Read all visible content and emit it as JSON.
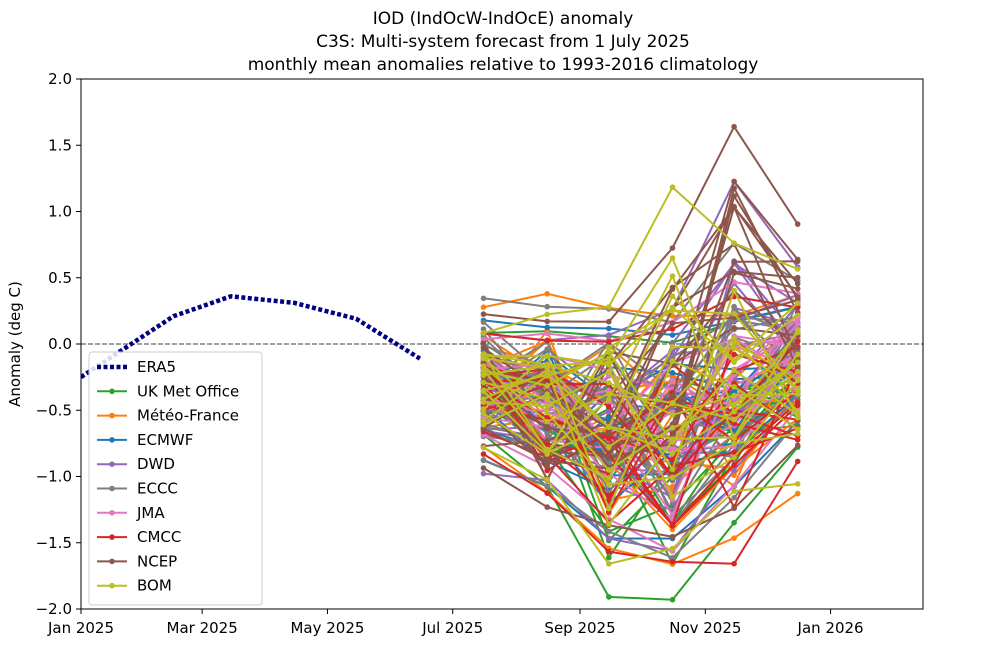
{
  "chart_data": {
    "type": "line",
    "title_lines": [
      "IOD (IndOcW-IndOcE) anomaly",
      "C3S: Multi-system forecast from 1 July 2025",
      "monthly mean anomalies relative to 1993-2016 climatology"
    ],
    "ylabel": "Anomaly (deg C)",
    "xlabel": "",
    "xlim": [
      "2025-01-01",
      "2026-02-15"
    ],
    "ylim": [
      -2.0,
      2.0
    ],
    "x_ticks": [
      {
        "date": "2025-01-01",
        "label": "Jan 2025"
      },
      {
        "date": "2025-03-01",
        "label": "Mar 2025"
      },
      {
        "date": "2025-05-01",
        "label": "May 2025"
      },
      {
        "date": "2025-07-01",
        "label": "Jul 2025"
      },
      {
        "date": "2025-09-01",
        "label": "Sep 2025"
      },
      {
        "date": "2025-11-01",
        "label": "Nov 2025"
      },
      {
        "date": "2026-01-01",
        "label": "Jan 2026"
      }
    ],
    "y_ticks": [
      {
        "value": 2.0,
        "label": "2.0"
      },
      {
        "value": 1.5,
        "label": "1.5"
      },
      {
        "value": 1.0,
        "label": "1.0"
      },
      {
        "value": 0.5,
        "label": "0.5"
      },
      {
        "value": 0.0,
        "label": "0.0"
      },
      {
        "value": -0.5,
        "label": "−0.5"
      },
      {
        "value": -1.0,
        "label": "−1.0"
      },
      {
        "value": -1.5,
        "label": "−1.5"
      },
      {
        "value": -2.0,
        "label": "−2.0"
      }
    ],
    "zero_line": true,
    "legend_position": "lower-left",
    "forecast_dates": [
      "2025-07-16",
      "2025-08-16",
      "2025-09-15",
      "2025-10-16",
      "2025-11-15",
      "2025-12-16"
    ],
    "observed": {
      "name": "ERA5",
      "color": "#000080",
      "dates": [
        "2025-01-01",
        "2025-02-15",
        "2025-03-15",
        "2025-04-15",
        "2025-05-15",
        "2025-06-15"
      ],
      "values": [
        -0.25,
        0.21,
        0.36,
        0.31,
        0.19,
        -0.11
      ]
    },
    "series": [
      {
        "name": "UK Met Office",
        "color": "#2ca02c",
        "members": 15,
        "envelope_low": [
          -0.7,
          -1.1,
          -1.95,
          -1.97,
          -1.38,
          -0.8
        ],
        "envelope_high": [
          0.1,
          0.12,
          0.1,
          0.05,
          0.2,
          0.3
        ]
      },
      {
        "name": "Météo-France",
        "color": "#ff7f0e",
        "members": 15,
        "envelope_low": [
          -0.8,
          -1.15,
          -1.58,
          -1.7,
          -1.5,
          -1.16
        ],
        "envelope_high": [
          0.3,
          0.41,
          0.31,
          0.25,
          0.25,
          0.4
        ]
      },
      {
        "name": "ECMWF",
        "color": "#1f77b4",
        "members": 15,
        "envelope_low": [
          -0.9,
          -1.1,
          -1.5,
          -1.5,
          -1.1,
          -0.6
        ],
        "envelope_high": [
          0.2,
          0.15,
          0.15,
          0.1,
          0.2,
          0.3
        ]
      },
      {
        "name": "DWD",
        "color": "#9467bd",
        "members": 15,
        "envelope_low": [
          -1.0,
          -1.05,
          -1.5,
          -1.6,
          -1.0,
          -0.4
        ],
        "envelope_high": [
          0.1,
          0.05,
          0.1,
          0.3,
          1.27,
          0.6
        ]
      },
      {
        "name": "ECCC",
        "color": "#7f7f7f",
        "members": 15,
        "envelope_low": [
          -0.9,
          -1.1,
          -1.45,
          -1.65,
          -1.2,
          -0.6
        ],
        "envelope_high": [
          0.37,
          0.31,
          0.3,
          0.2,
          0.8,
          0.5
        ]
      },
      {
        "name": "JMA",
        "color": "#e377c2",
        "members": 15,
        "envelope_low": [
          -0.7,
          -0.95,
          -1.35,
          -1.6,
          -1.1,
          -0.5
        ],
        "envelope_high": [
          0.05,
          0.1,
          0.05,
          0.2,
          0.5,
          0.4
        ]
      },
      {
        "name": "CMCC",
        "color": "#d62728",
        "members": 15,
        "envelope_low": [
          -0.85,
          -1.15,
          -1.6,
          -1.68,
          -1.7,
          -0.91
        ],
        "envelope_high": [
          0.1,
          0.05,
          0.05,
          0.15,
          0.4,
          0.3
        ]
      },
      {
        "name": "NCEP",
        "color": "#8c564b",
        "members": 15,
        "envelope_low": [
          -0.96,
          -1.26,
          -1.4,
          -1.5,
          -1.3,
          -0.8
        ],
        "envelope_high": [
          0.25,
          0.2,
          0.2,
          0.77,
          1.7,
          0.94
        ]
      },
      {
        "name": "BOM",
        "color": "#bcbd22",
        "members": 20,
        "envelope_low": [
          -0.8,
          -1.05,
          -1.7,
          -1.6,
          -1.15,
          -1.09
        ],
        "envelope_high": [
          0.1,
          0.25,
          0.32,
          1.24,
          0.8,
          0.6
        ]
      }
    ]
  }
}
